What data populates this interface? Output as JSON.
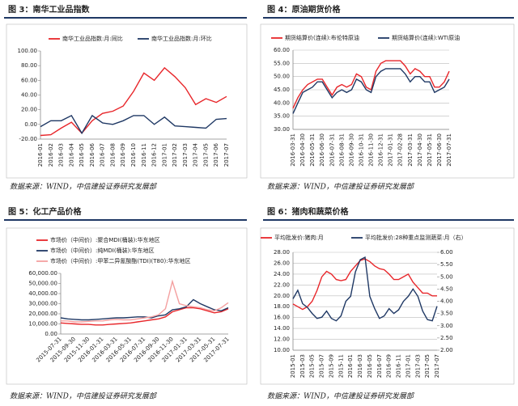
{
  "chart_data": [
    {
      "type": "line",
      "title": "图 3：南华工业品指数",
      "source": "数据来源：WIND，中信建投证券研究发展部",
      "categories": [
        "2016-01",
        "2016-02",
        "2016-03",
        "2016-04",
        "2016-05",
        "2016-06",
        "2016-07",
        "2016-08",
        "2016-09",
        "2016-10",
        "2016-11",
        "2016-12",
        "2017-01",
        "2017-02",
        "2017-03",
        "2017-04",
        "2017-05",
        "2017-06",
        "2017-07"
      ],
      "series": [
        {
          "name": "南华工业品指数:月:同比",
          "color": "#e8262a",
          "values": [
            -15,
            -14,
            -5,
            3,
            -12,
            5,
            15,
            18,
            25,
            45,
            70,
            60,
            77,
            65,
            50,
            27,
            35,
            30,
            38
          ]
        },
        {
          "name": "南华工业品指数:月:环比",
          "color": "#1f3864",
          "values": [
            -3,
            5,
            5,
            12,
            -12,
            12,
            2,
            0,
            5,
            12,
            12,
            0,
            10,
            -2,
            -3,
            -4,
            -5,
            7,
            8
          ]
        }
      ],
      "ylim": [
        -20,
        100
      ],
      "yticks": [
        {
          "value": -20,
          "label": "-20.00"
        },
        {
          "value": 0,
          "label": "0.00"
        },
        {
          "value": 20,
          "label": "20.00"
        },
        {
          "value": 40,
          "label": "40.00"
        },
        {
          "value": 60,
          "label": "60.00"
        },
        {
          "value": 80,
          "label": "80.00"
        },
        {
          "value": 100,
          "label": "100.00"
        }
      ],
      "grid": false
    },
    {
      "type": "line",
      "title": "图 4：原油期货价格",
      "source": "数据来源：WIND，中信建投证券研究发展部",
      "categories": [
        "2016-03-31",
        null,
        "2016-04-30",
        null,
        "2016-05-31",
        null,
        "2016-06-30",
        null,
        "2016-07-31",
        null,
        "2016-08-31",
        null,
        "2016-09-30",
        null,
        "2016-10-31",
        null,
        "2016-11-30",
        null,
        "2016-12-31",
        null,
        "2017-01-31",
        null,
        "2017-02-28",
        null,
        "2017-03-31",
        null,
        "2017-04-30",
        null,
        "2017-05-31",
        null,
        "2017-06-30",
        null,
        "2017-07-31"
      ],
      "series": [
        {
          "name": "期货结算价(连续):布伦特原油",
          "color": "#e8262a",
          "values": [
            38,
            42,
            45,
            47,
            48,
            49,
            49,
            46,
            43,
            46,
            47,
            46,
            47,
            51,
            50,
            46,
            45,
            52,
            55,
            56,
            56,
            56,
            56,
            54,
            51,
            53,
            52,
            50,
            50,
            46,
            46,
            48,
            52
          ]
        },
        {
          "name": "期货结算价(连续):WTI原油",
          "color": "#1f3864",
          "values": [
            36,
            40,
            44,
            45,
            46,
            48,
            48,
            45,
            42,
            44,
            45,
            44,
            45,
            49,
            48,
            45,
            44,
            50,
            52,
            53,
            53,
            53,
            53,
            51,
            48,
            50,
            50,
            48,
            48,
            44,
            45,
            46,
            49
          ]
        }
      ],
      "ylim": [
        30,
        60
      ],
      "yticks": [
        {
          "value": 30,
          "label": "30.00"
        },
        {
          "value": 35,
          "label": "35.00"
        },
        {
          "value": 40,
          "label": "40.00"
        },
        {
          "value": 45,
          "label": "45.00"
        },
        {
          "value": 50,
          "label": "50.00"
        },
        {
          "value": 55,
          "label": "55.00"
        },
        {
          "value": 60,
          "label": "60.00"
        }
      ],
      "grid": true
    },
    {
      "type": "line",
      "title": "图 5：化工产品价格",
      "source": "数据来源：WIND，中信建投证券研究发展部",
      "categories": [
        "2015-07-31",
        null,
        "2015-09-30",
        null,
        "2015-11-30",
        null,
        "2016-01-31",
        null,
        "2016-03-31",
        null,
        "2016-05-31",
        null,
        "2016-07-31",
        null,
        "2016-09-30",
        null,
        "2016-11-30",
        null,
        "2017-01-31",
        null,
        "2017-03-31",
        null,
        "2017-05-31",
        null,
        "2017-07-31"
      ],
      "series": [
        {
          "name": "市场价（中间价）:聚合MDI(桶装):华东地区",
          "color": "#e8262a",
          "values": [
            11000,
            10500,
            10000,
            9500,
            9500,
            9000,
            9000,
            9500,
            10000,
            10500,
            11000,
            12000,
            13000,
            14000,
            15000,
            17000,
            22000,
            24000,
            26000,
            26000,
            25000,
            23000,
            21000,
            22000,
            25000
          ]
        },
        {
          "name": "市场价（中间价）:纯MDI(桶装):华东地区",
          "color": "#1f3864",
          "values": [
            16000,
            15000,
            14500,
            14000,
            14000,
            14500,
            15000,
            15500,
            16000,
            16000,
            16500,
            17000,
            17000,
            16000,
            18000,
            19000,
            24000,
            25000,
            27000,
            34000,
            30000,
            27000,
            24000,
            23000,
            26000
          ]
        },
        {
          "name": "市场价（中间价）:甲苯二异氰酸酯(TDI)(T80):华东地区",
          "color": "#f4a0a0",
          "values": [
            13000,
            13000,
            12000,
            12000,
            12500,
            13000,
            13000,
            14000,
            14500,
            14000,
            14000,
            15000,
            16000,
            17000,
            19000,
            25000,
            52000,
            30000,
            28000,
            27000,
            26000,
            24000,
            23000,
            26000,
            31000
          ]
        }
      ],
      "ylim": [
        0,
        60000
      ],
      "yticks": [
        {
          "value": 0,
          "label": "0.00"
        },
        {
          "value": 10000,
          "label": "10,000.00"
        },
        {
          "value": 20000,
          "label": "20,000.00"
        },
        {
          "value": 30000,
          "label": "30,000.00"
        },
        {
          "value": 40000,
          "label": "40,000.00"
        },
        {
          "value": 50000,
          "label": "50,000.00"
        },
        {
          "value": 60000,
          "label": "60,000.00"
        }
      ],
      "grid": false
    },
    {
      "type": "line",
      "title": "图 6：猪肉和蔬菜价格",
      "source": "数据来源：WIND，中信建投证券研究发展部",
      "categories": [
        "2015-01",
        null,
        "2015-03",
        null,
        "2015-05",
        null,
        "2015-07",
        null,
        "2015-09",
        null,
        "2015-11",
        null,
        "2016-01",
        null,
        "2016-03",
        null,
        "2016-05",
        null,
        "2016-07",
        null,
        "2016-09",
        null,
        "2016-11",
        null,
        "2017-01",
        null,
        "2017-03",
        null,
        "2017-05",
        null,
        "2017-07"
      ],
      "series": [
        {
          "name": "平均批发价:猪肉:月",
          "color": "#e8262a",
          "values": [
            18.5,
            18,
            17.5,
            18,
            19,
            21,
            23.5,
            24.5,
            24,
            23,
            22.8,
            23,
            24.5,
            25.5,
            26.5,
            26.8,
            26.3,
            25.5,
            25,
            24.8,
            24,
            23,
            23,
            23.5,
            24,
            22.5,
            21.5,
            20.5,
            20.5,
            20,
            20
          ]
        },
        {
          "name": "平均批发价:28种重点监测蔬菜:月（右）",
          "color": "#1f3864",
          "axis": "y2",
          "values": [
            4.1,
            4.45,
            3.9,
            3.75,
            3.5,
            3.3,
            3.35,
            3.6,
            3.3,
            3.2,
            3.4,
            4.0,
            4.2,
            5.2,
            5.7,
            5.8,
            4.2,
            3.7,
            3.3,
            3.4,
            3.7,
            3.5,
            3.65,
            4.0,
            4.2,
            4.5,
            4.2,
            3.6,
            3.25,
            3.2,
            3.8
          ]
        }
      ],
      "ylim": [
        10,
        28
      ],
      "yticks": [
        {
          "value": 10,
          "label": "10.00"
        },
        {
          "value": 12,
          "label": "12.00"
        },
        {
          "value": 14,
          "label": "14.00"
        },
        {
          "value": 16,
          "label": "16.00"
        },
        {
          "value": 18,
          "label": "18.00"
        },
        {
          "value": 20,
          "label": "20.00"
        },
        {
          "value": 22,
          "label": "22.00"
        },
        {
          "value": 24,
          "label": "24.00"
        },
        {
          "value": 26,
          "label": "26.00"
        },
        {
          "value": 28,
          "label": "28.00"
        }
      ],
      "y2lim": [
        2,
        6
      ],
      "y2ticks": [
        {
          "value": 2,
          "label": "2.00"
        },
        {
          "value": 2.5,
          "label": "2.50"
        },
        {
          "value": 3,
          "label": "3.00"
        },
        {
          "value": 3.5,
          "label": "3.50"
        },
        {
          "value": 4,
          "label": "4.00"
        },
        {
          "value": 4.5,
          "label": "4.50"
        },
        {
          "value": 5,
          "label": "5.00"
        },
        {
          "value": 5.5,
          "label": "5.50"
        },
        {
          "value": 6,
          "label": "6.00"
        }
      ],
      "grid": true
    }
  ]
}
